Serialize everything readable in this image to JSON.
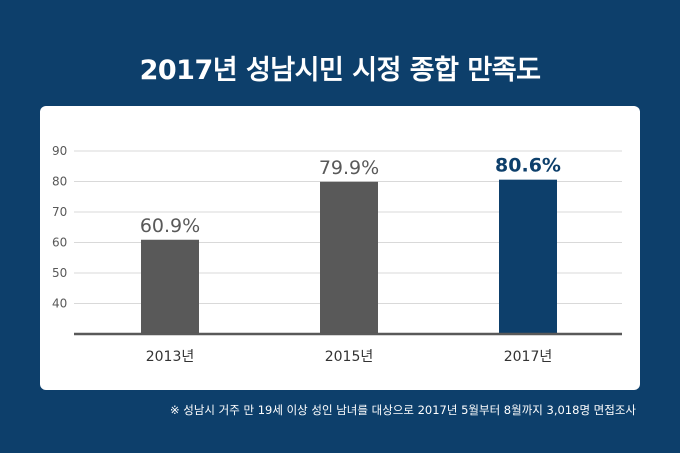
{
  "title": "2017년 성남시민 시정 종합 만족도",
  "footnote": "※ 성남시 거주 만 19세 이상 성인 남녀를 대상으로 2017년 5월부터 8월까지  3,018명 면접조사",
  "colors": {
    "background": "#0d3f6b",
    "bar_default": "#595959",
    "bar_highlight": "#0d3f6b",
    "gridline": "#d9d9d9",
    "axis": "#595959",
    "label_default": "#595959",
    "label_highlight": "#0d3f6b"
  },
  "chart_data": {
    "type": "bar",
    "categories": [
      "2013년",
      "2015년",
      "2017년"
    ],
    "values": [
      60.9,
      79.9,
      80.6
    ],
    "value_labels": [
      "60.9%",
      "79.9%",
      "80.6%"
    ],
    "highlight_index": 2,
    "yticks": [
      "40",
      "50",
      "60",
      "70",
      "80",
      "90"
    ],
    "ylim": [
      30,
      90
    ],
    "grid": true,
    "xlabel": "",
    "ylabel": ""
  }
}
